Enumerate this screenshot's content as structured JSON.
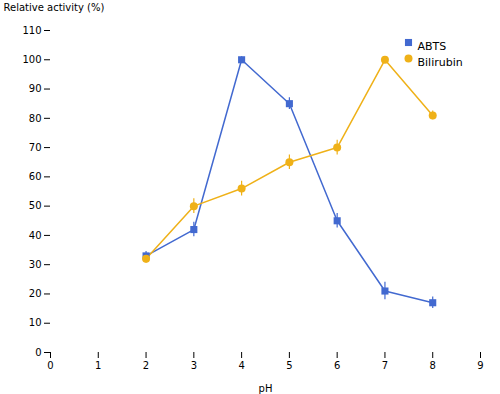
{
  "chart_data": {
    "type": "line",
    "x": [
      2,
      3,
      4,
      5,
      6,
      7,
      8
    ],
    "series": [
      {
        "name": "ABTS",
        "marker": "square",
        "values": [
          33,
          42,
          100,
          85,
          45,
          21,
          17
        ],
        "errors": [
          1.5,
          2.5,
          1.0,
          2.0,
          2.5,
          3.0,
          2.0
        ]
      },
      {
        "name": "Bilirubin",
        "marker": "circle",
        "values": [
          32,
          50,
          56,
          65,
          70,
          100,
          81
        ],
        "errors": [
          1.5,
          2.5,
          2.5,
          2.5,
          2.5,
          1.0,
          1.5
        ]
      }
    ],
    "xlabel": "pH",
    "ylabel": "Relative activity (%)",
    "xlim": [
      0,
      9
    ],
    "ylim": [
      0,
      110
    ],
    "xticks": [
      0,
      1,
      2,
      3,
      4,
      5,
      6,
      7,
      8,
      9
    ],
    "yticks": [
      0,
      10,
      20,
      30,
      40,
      50,
      60,
      70,
      80,
      90,
      100,
      110
    ],
    "legend": "upper right",
    "grid": false
  }
}
